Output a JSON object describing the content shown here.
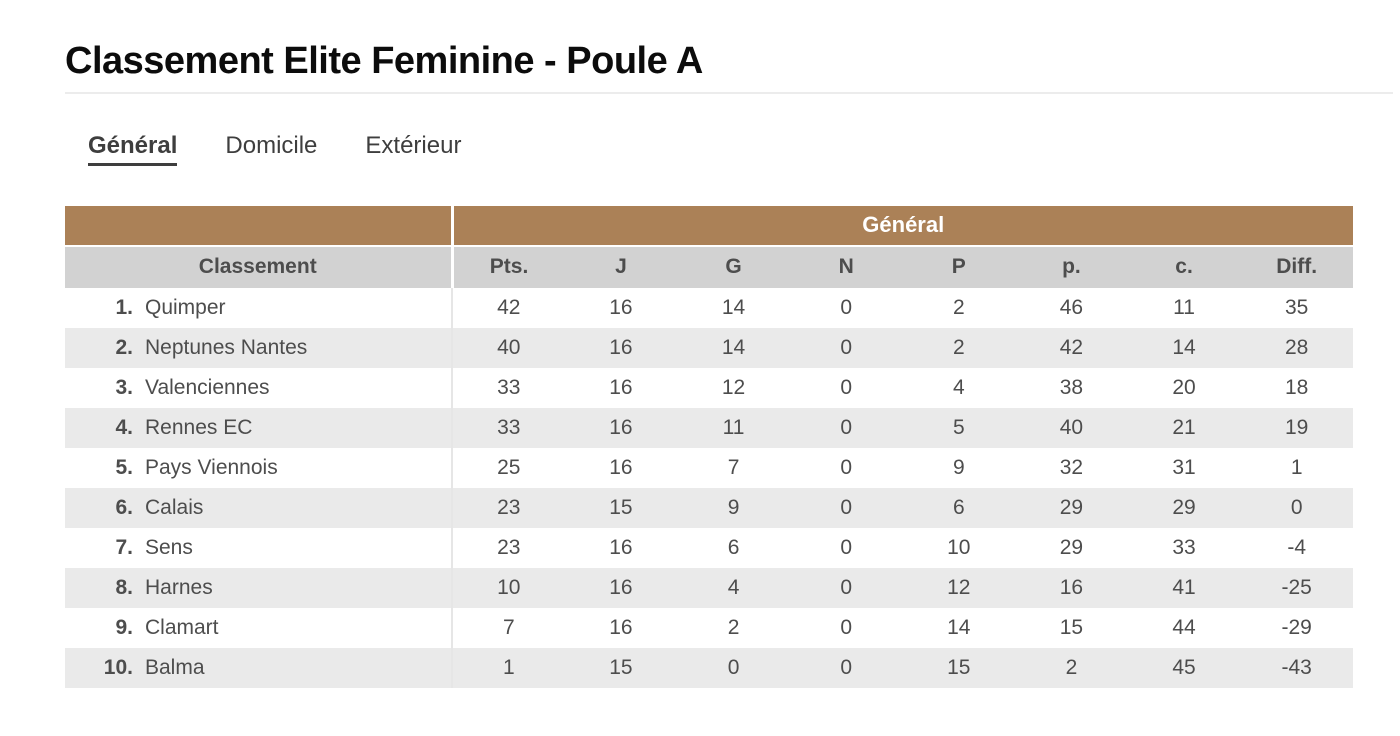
{
  "page": {
    "title": "Classement Elite Feminine - Poule A"
  },
  "tabs": [
    {
      "label": "Général",
      "active": true
    },
    {
      "label": "Domicile",
      "active": false
    },
    {
      "label": "Extérieur",
      "active": false
    }
  ],
  "table": {
    "group_header": "Général",
    "columns": [
      "Classement",
      "Pts.",
      "J",
      "G",
      "N",
      "P",
      "p.",
      "c.",
      "Diff."
    ],
    "rows": [
      {
        "rank": "1.",
        "team": "Quimper",
        "values": [
          42,
          16,
          14,
          0,
          2,
          46,
          11,
          35
        ]
      },
      {
        "rank": "2.",
        "team": "Neptunes Nantes",
        "values": [
          40,
          16,
          14,
          0,
          2,
          42,
          14,
          28
        ]
      },
      {
        "rank": "3.",
        "team": "Valenciennes",
        "values": [
          33,
          16,
          12,
          0,
          4,
          38,
          20,
          18
        ]
      },
      {
        "rank": "4.",
        "team": "Rennes EC",
        "values": [
          33,
          16,
          11,
          0,
          5,
          40,
          21,
          19
        ]
      },
      {
        "rank": "5.",
        "team": "Pays Viennois",
        "values": [
          25,
          16,
          7,
          0,
          9,
          32,
          31,
          1
        ]
      },
      {
        "rank": "6.",
        "team": "Calais",
        "values": [
          23,
          15,
          9,
          0,
          6,
          29,
          29,
          0
        ]
      },
      {
        "rank": "7.",
        "team": "Sens",
        "values": [
          23,
          16,
          6,
          0,
          10,
          29,
          33,
          -4
        ]
      },
      {
        "rank": "8.",
        "team": "Harnes",
        "values": [
          10,
          16,
          4,
          0,
          12,
          16,
          41,
          -25
        ]
      },
      {
        "rank": "9.",
        "team": "Clamart",
        "values": [
          7,
          16,
          2,
          0,
          14,
          15,
          44,
          -29
        ]
      },
      {
        "rank": "10.",
        "team": "Balma",
        "values": [
          1,
          15,
          0,
          0,
          15,
          2,
          45,
          -43
        ]
      }
    ]
  },
  "colors": {
    "brand-brown": "#ab8157",
    "header-gray": "#d2d2d2",
    "row-alt": "#eaeaea",
    "text-dark": "#4d4d4d",
    "rule-light": "#ececec"
  }
}
